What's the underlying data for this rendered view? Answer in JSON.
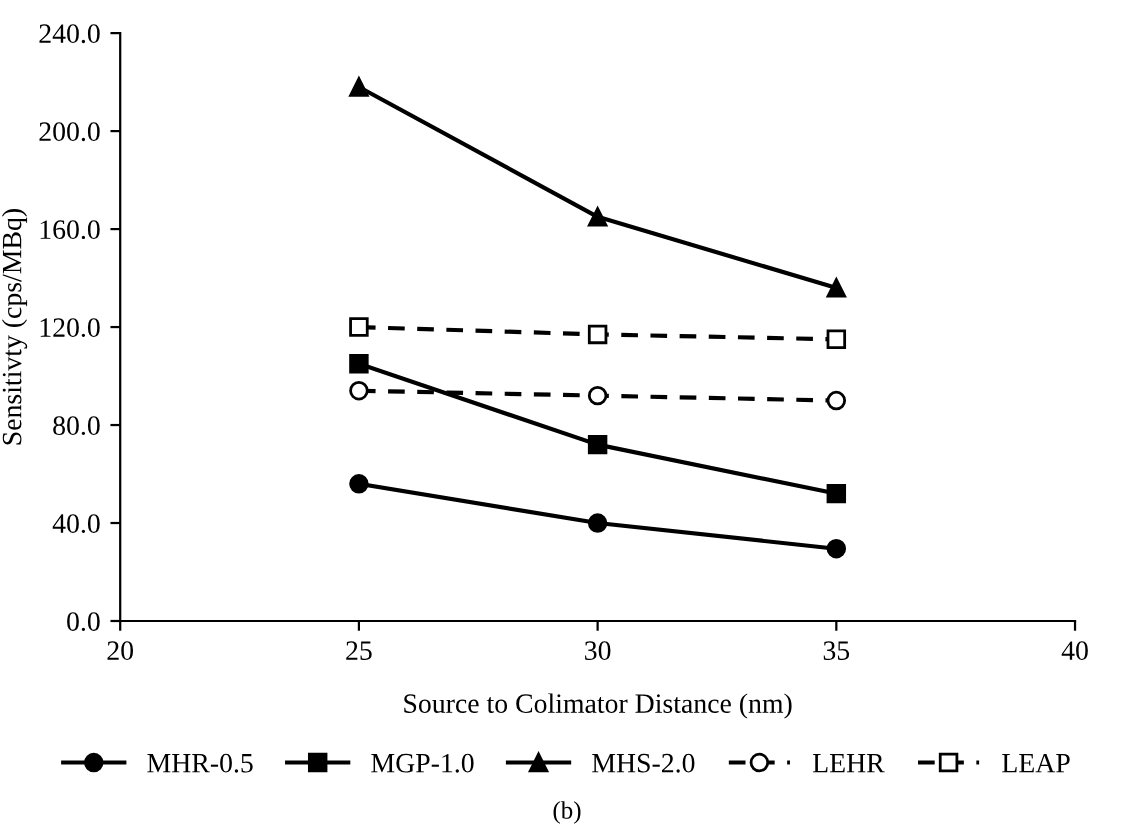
{
  "chart_data": {
    "type": "line",
    "xlabel": "Source to Colimator Distance (nm)",
    "ylabel": "Sensitivty (cps/MBq)",
    "x": [
      25,
      30,
      35
    ],
    "series": [
      {
        "name": "MHR-0.5",
        "color": "#000000",
        "marker": "circle",
        "line_style": "solid",
        "values": [
          56,
          40,
          29.5
        ]
      },
      {
        "name": "MGP-1.0",
        "color": "#000000",
        "marker": "square",
        "line_style": "solid",
        "values": [
          105,
          72,
          52
        ]
      },
      {
        "name": "MHS-2.0",
        "color": "#000000",
        "marker": "triangle",
        "line_style": "solid",
        "values": [
          218,
          165,
          136
        ]
      },
      {
        "name": "LEHR",
        "color": "#000000",
        "marker": "circle",
        "line_style": "dashed",
        "values": [
          94,
          92,
          90
        ]
      },
      {
        "name": "LEAP",
        "color": "#000000",
        "marker": "square",
        "line_style": "dashed",
        "values": [
          120,
          117,
          115
        ]
      }
    ],
    "xlim": [
      20,
      40
    ],
    "xticks": [
      20,
      25,
      30,
      35,
      40
    ],
    "ylim": [
      0,
      240
    ],
    "yticks": [
      {
        "value": 0,
        "label": "0.0"
      },
      {
        "value": 40,
        "label": "40.0"
      },
      {
        "value": 80,
        "label": "80.0"
      },
      {
        "value": 120,
        "label": "120.0"
      },
      {
        "value": 160,
        "label": "160.0"
      },
      {
        "value": 200,
        "label": "200.0"
      },
      {
        "value": 240,
        "label": "240.0"
      }
    ],
    "grid": false,
    "legend": "bottom",
    "annotations": [
      "(b)"
    ]
  }
}
